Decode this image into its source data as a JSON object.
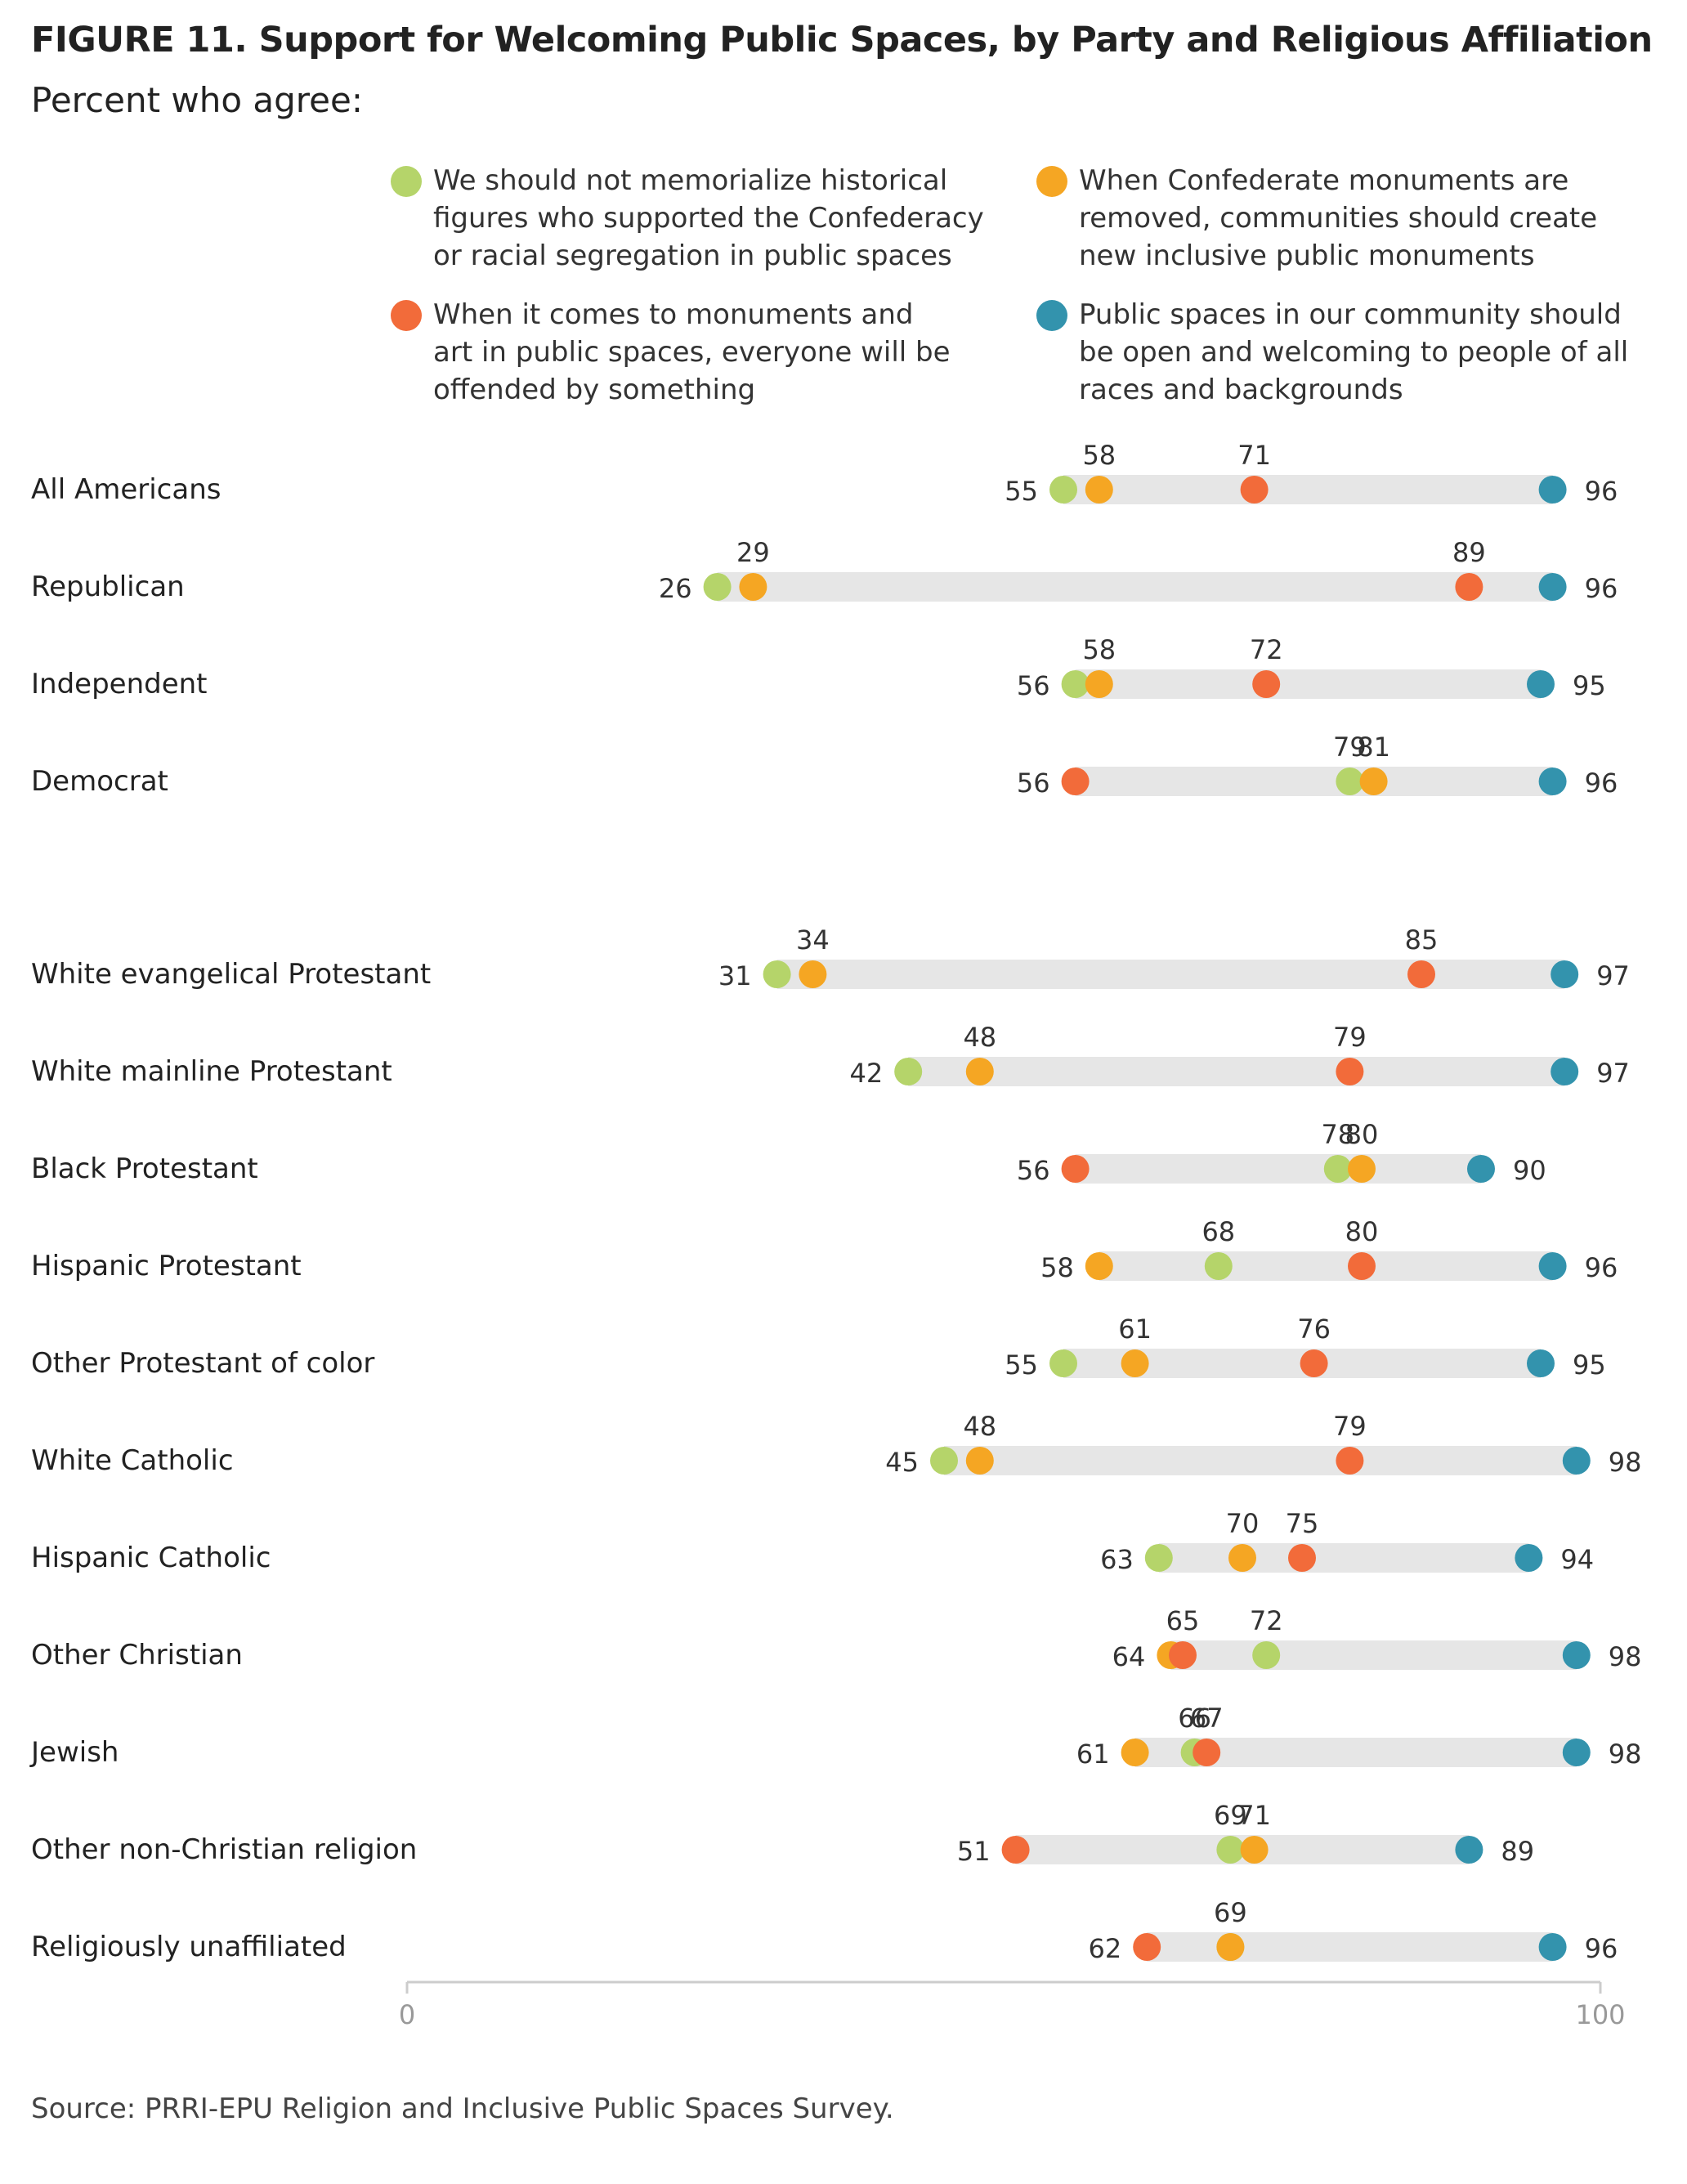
{
  "title": "FIGURE 11. Support for Welcoming Public Spaces, by Party and Religious Affiliation",
  "subtitle": "Percent who agree:",
  "legend": [
    {
      "key": "memorialize",
      "label": "We should not memorialize historical\nfigures who supported the Confederacy\nor racial segregation in public spaces",
      "color": "#b5d46a"
    },
    {
      "key": "inclusive",
      "label": "When Confederate monuments are\nremoved, communities should create\nnew inclusive public monuments",
      "color": "#f5a623"
    },
    {
      "key": "offended",
      "label": "When it comes to monuments and\nart in public spaces, everyone will be\noffended by something",
      "color": "#f26b3a"
    },
    {
      "key": "welcoming",
      "label": "Public spaces in our community should\nbe open and welcoming to people of all\nraces and backgrounds",
      "color": "#3393ad"
    }
  ],
  "source": "Source: PRRI-EPU Religion and Inclusive Public Spaces Survey.",
  "chart_data": {
    "type": "dot-range",
    "xlim": [
      0,
      100
    ],
    "x_ticks": [
      "0",
      "100"
    ],
    "series_order": [
      "memorialize",
      "inclusive",
      "offended",
      "welcoming"
    ],
    "rows": [
      {
        "label": "All Americans",
        "group": 0,
        "values": {
          "memorialize": 55,
          "inclusive": 58,
          "offended": 71,
          "welcoming": 96
        }
      },
      {
        "label": "Republican",
        "group": 0,
        "values": {
          "memorialize": 26,
          "inclusive": 29,
          "offended": 89,
          "welcoming": 96
        }
      },
      {
        "label": "Independent",
        "group": 0,
        "values": {
          "memorialize": 56,
          "inclusive": 58,
          "offended": 72,
          "welcoming": 95
        }
      },
      {
        "label": "Democrat",
        "group": 0,
        "values": {
          "memorialize": 79,
          "inclusive": 81,
          "offended": 56,
          "welcoming": 96
        }
      },
      {
        "label": "White evangelical Protestant",
        "group": 1,
        "values": {
          "memorialize": 31,
          "inclusive": 34,
          "offended": 85,
          "welcoming": 97
        }
      },
      {
        "label": "White mainline Protestant",
        "group": 1,
        "values": {
          "memorialize": 42,
          "inclusive": 48,
          "offended": 79,
          "welcoming": 97
        }
      },
      {
        "label": "Black Protestant",
        "group": 1,
        "values": {
          "memorialize": 78,
          "inclusive": 80,
          "offended": 56,
          "welcoming": 90
        }
      },
      {
        "label": "Hispanic Protestant",
        "group": 1,
        "values": {
          "memorialize": 68,
          "inclusive": 58,
          "offended": 80,
          "welcoming": 96
        }
      },
      {
        "label": "Other Protestant of color",
        "group": 1,
        "values": {
          "memorialize": 55,
          "inclusive": 61,
          "offended": 76,
          "welcoming": 95
        }
      },
      {
        "label": "White Catholic",
        "group": 1,
        "values": {
          "memorialize": 45,
          "inclusive": 48,
          "offended": 79,
          "welcoming": 98
        }
      },
      {
        "label": "Hispanic Catholic",
        "group": 1,
        "values": {
          "memorialize": 63,
          "inclusive": 70,
          "offended": 75,
          "welcoming": 94
        }
      },
      {
        "label": "Other Christian",
        "group": 1,
        "values": {
          "memorialize": 72,
          "inclusive": 64,
          "offended": 65,
          "welcoming": 98
        }
      },
      {
        "label": "Jewish",
        "group": 1,
        "values": {
          "memorialize": 66,
          "inclusive": 61,
          "offended": 67,
          "welcoming": 98
        }
      },
      {
        "label": "Other non-Christian religion",
        "group": 1,
        "values": {
          "memorialize": 69,
          "inclusive": 71,
          "offended": 51,
          "welcoming": 89
        }
      },
      {
        "label": "Religiously unaffiliated",
        "group": 1,
        "values": {
          "memorialize": 69,
          "inclusive": 69,
          "offended": 62,
          "welcoming": 96
        }
      }
    ]
  }
}
